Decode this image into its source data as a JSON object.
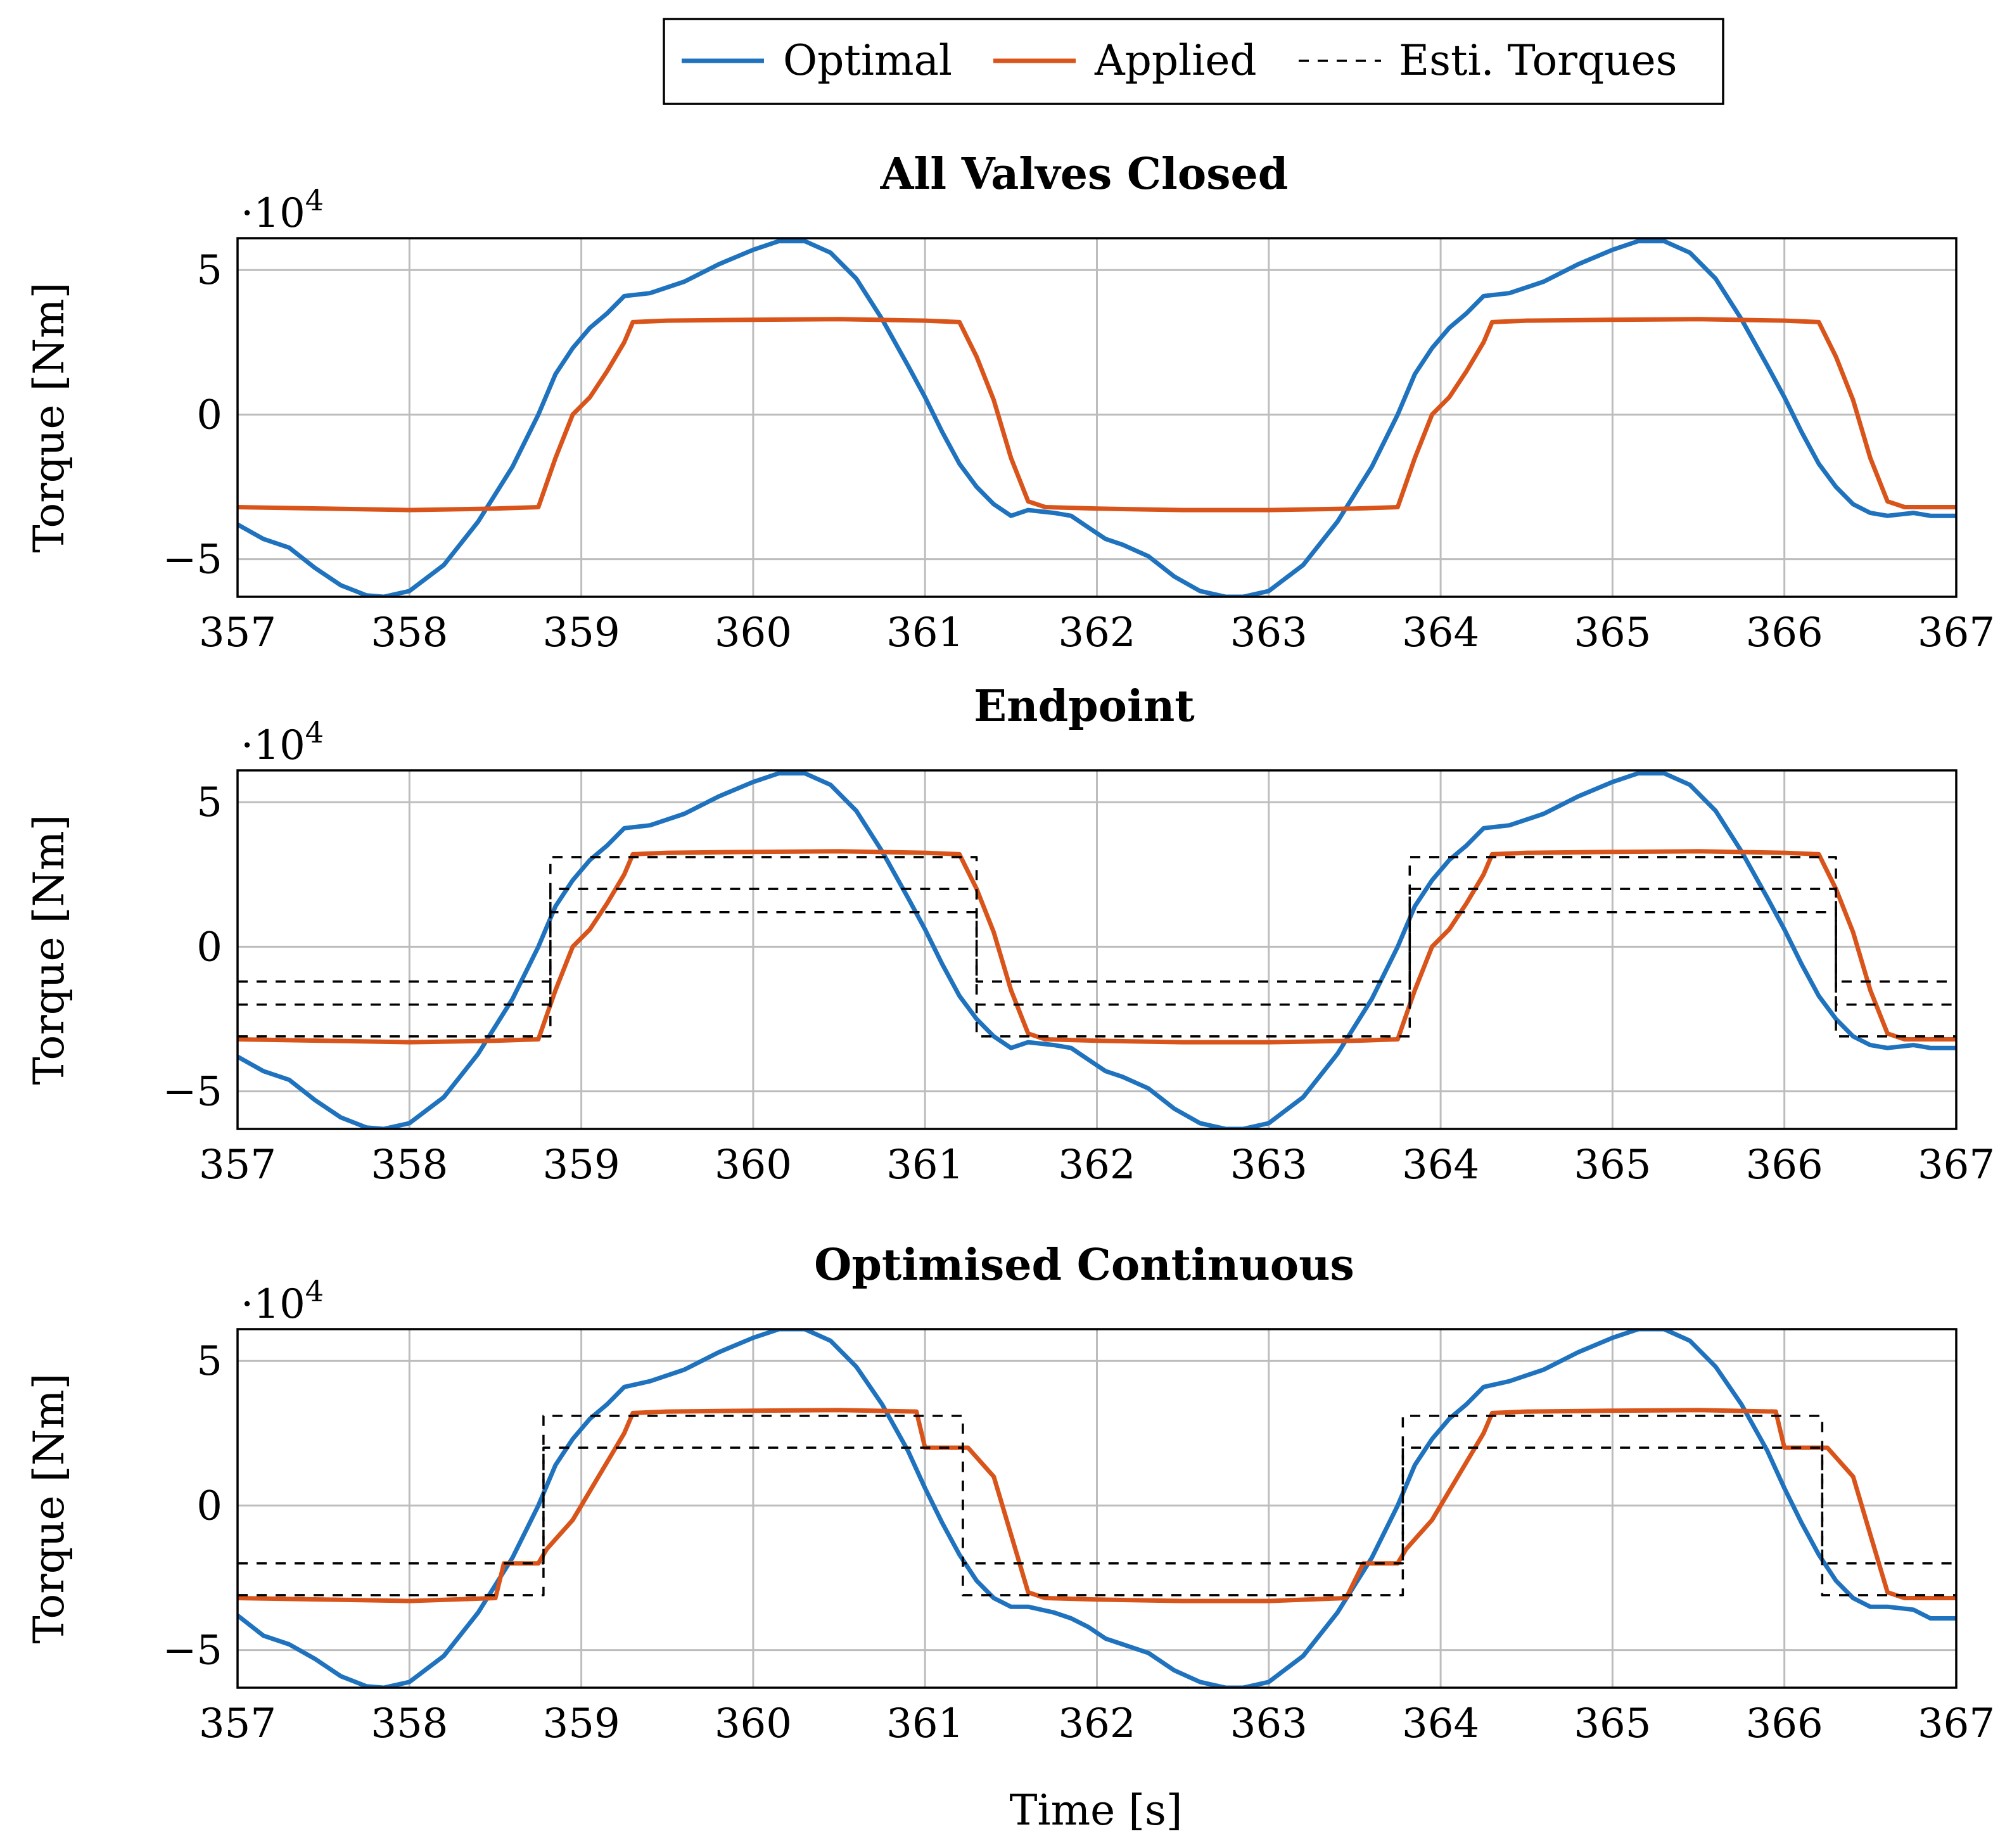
{
  "legend": {
    "items": [
      {
        "label": "Optimal",
        "color": "#1f72bd",
        "style": "solid"
      },
      {
        "label": "Applied",
        "color": "#d9541a",
        "style": "solid"
      },
      {
        "label": "Esti. Torques",
        "color": "#000000",
        "style": "dashed"
      }
    ]
  },
  "xlabel": "Time [s]",
  "chart_data": [
    {
      "type": "line",
      "title": "All Valves Closed",
      "ylabel": "Torque [Nm]",
      "y_multiplier_prefix": "·10",
      "y_multiplier_exp": "4",
      "xlim": [
        357,
        367
      ],
      "ylim": [
        -6.3,
        6.1
      ],
      "xticks": [
        "357",
        "358",
        "359",
        "360",
        "361",
        "362",
        "363",
        "364",
        "365",
        "366",
        "367"
      ],
      "yticks": [
        {
          "value": 5,
          "label": "5"
        },
        {
          "value": 0,
          "label": "0"
        },
        {
          "value": -5,
          "label": "−5"
        }
      ],
      "series": [
        {
          "name": "Optimal",
          "color": "#1f72bd",
          "x": [
            357.0,
            357.15,
            357.3,
            357.45,
            357.6,
            357.75,
            357.85,
            358.0,
            358.2,
            358.4,
            358.6,
            358.75,
            358.85,
            358.95,
            359.05,
            359.15,
            359.25,
            359.4,
            359.6,
            359.8,
            360.0,
            360.15,
            360.3,
            360.45,
            360.6,
            360.75,
            360.9,
            361.0,
            361.1,
            361.2,
            361.3,
            361.4,
            361.5,
            361.6,
            361.75,
            361.85,
            361.95,
            362.05,
            362.15,
            362.3,
            362.45,
            362.6,
            362.75,
            362.85,
            363.0,
            363.2,
            363.4,
            363.6,
            363.75,
            363.85,
            363.95,
            364.05,
            364.15,
            364.25,
            364.4,
            364.6,
            364.8,
            365.0,
            365.15,
            365.3,
            365.45,
            365.6,
            365.75,
            365.9,
            366.0,
            366.1,
            366.2,
            366.3,
            366.4,
            366.5,
            366.6,
            366.75,
            366.85,
            367.0
          ],
          "y": [
            -3.8,
            -4.3,
            -4.6,
            -5.3,
            -5.9,
            -6.25,
            -6.3,
            -6.1,
            -5.2,
            -3.7,
            -1.8,
            0.0,
            1.4,
            2.3,
            3.0,
            3.5,
            4.1,
            4.2,
            4.6,
            5.2,
            5.7,
            6.0,
            6.0,
            5.6,
            4.7,
            3.3,
            1.7,
            0.6,
            -0.6,
            -1.7,
            -2.5,
            -3.1,
            -3.5,
            -3.3,
            -3.4,
            -3.5,
            -3.9,
            -4.3,
            -4.5,
            -4.9,
            -5.6,
            -6.1,
            -6.3,
            -6.3,
            -6.1,
            -5.2,
            -3.7,
            -1.8,
            0.0,
            1.4,
            2.3,
            3.0,
            3.5,
            4.1,
            4.2,
            4.6,
            5.2,
            5.7,
            6.0,
            6.0,
            5.6,
            4.7,
            3.3,
            1.7,
            0.6,
            -0.6,
            -1.7,
            -2.5,
            -3.1,
            -3.4,
            -3.5,
            -3.4,
            -3.5,
            -3.5
          ]
        },
        {
          "name": "Applied",
          "color": "#d9541a",
          "x": [
            357.0,
            357.5,
            358.0,
            358.5,
            358.75,
            358.85,
            358.95,
            359.05,
            359.15,
            359.25,
            359.3,
            359.5,
            360.0,
            360.5,
            361.0,
            361.2,
            361.3,
            361.4,
            361.5,
            361.6,
            361.7,
            362.0,
            362.5,
            363.0,
            363.5,
            363.75,
            363.85,
            363.95,
            364.05,
            364.15,
            364.25,
            364.3,
            364.5,
            365.0,
            365.5,
            366.0,
            366.2,
            366.3,
            366.4,
            366.5,
            366.6,
            366.7,
            367.0
          ],
          "y": [
            -3.2,
            -3.25,
            -3.3,
            -3.25,
            -3.2,
            -1.5,
            0.0,
            0.6,
            1.5,
            2.5,
            3.2,
            3.25,
            3.28,
            3.3,
            3.25,
            3.2,
            2.0,
            0.5,
            -1.5,
            -3.0,
            -3.2,
            -3.25,
            -3.3,
            -3.3,
            -3.25,
            -3.2,
            -1.5,
            0.0,
            0.6,
            1.5,
            2.5,
            3.2,
            3.25,
            3.28,
            3.3,
            3.25,
            3.2,
            2.0,
            0.5,
            -1.5,
            -3.0,
            -3.2,
            -3.2
          ]
        }
      ]
    },
    {
      "type": "line",
      "title": "Endpoint",
      "ylabel": "Torque [Nm]",
      "y_multiplier_prefix": "·10",
      "y_multiplier_exp": "4",
      "xlim": [
        357,
        367
      ],
      "ylim": [
        -6.3,
        6.1
      ],
      "xticks": [
        "357",
        "358",
        "359",
        "360",
        "361",
        "362",
        "363",
        "364",
        "365",
        "366",
        "367"
      ],
      "yticks": [
        {
          "value": 5,
          "label": "5"
        },
        {
          "value": 0,
          "label": "0"
        },
        {
          "value": -5,
          "label": "−5"
        }
      ],
      "series": [
        {
          "name": "Optimal",
          "color": "#1f72bd",
          "x": [
            357.0,
            357.15,
            357.3,
            357.45,
            357.6,
            357.75,
            357.85,
            358.0,
            358.2,
            358.4,
            358.6,
            358.75,
            358.85,
            358.95,
            359.05,
            359.15,
            359.25,
            359.4,
            359.6,
            359.8,
            360.0,
            360.15,
            360.3,
            360.45,
            360.6,
            360.75,
            360.9,
            361.0,
            361.1,
            361.2,
            361.3,
            361.4,
            361.5,
            361.6,
            361.75,
            361.85,
            361.95,
            362.05,
            362.15,
            362.3,
            362.45,
            362.6,
            362.75,
            362.85,
            363.0,
            363.2,
            363.4,
            363.6,
            363.75,
            363.85,
            363.95,
            364.05,
            364.15,
            364.25,
            364.4,
            364.6,
            364.8,
            365.0,
            365.15,
            365.3,
            365.45,
            365.6,
            365.75,
            365.9,
            366.0,
            366.1,
            366.2,
            366.3,
            366.4,
            366.5,
            366.6,
            366.75,
            366.85,
            367.0
          ],
          "y": [
            -3.8,
            -4.3,
            -4.6,
            -5.3,
            -5.9,
            -6.25,
            -6.3,
            -6.1,
            -5.2,
            -3.7,
            -1.8,
            0.0,
            1.4,
            2.3,
            3.0,
            3.5,
            4.1,
            4.2,
            4.6,
            5.2,
            5.7,
            6.0,
            6.0,
            5.6,
            4.7,
            3.3,
            1.7,
            0.6,
            -0.6,
            -1.7,
            -2.5,
            -3.1,
            -3.5,
            -3.3,
            -3.4,
            -3.5,
            -3.9,
            -4.3,
            -4.5,
            -4.9,
            -5.6,
            -6.1,
            -6.3,
            -6.3,
            -6.1,
            -5.2,
            -3.7,
            -1.8,
            0.0,
            1.4,
            2.3,
            3.0,
            3.5,
            4.1,
            4.2,
            4.6,
            5.2,
            5.7,
            6.0,
            6.0,
            5.6,
            4.7,
            3.3,
            1.7,
            0.6,
            -0.6,
            -1.7,
            -2.5,
            -3.1,
            -3.4,
            -3.5,
            -3.4,
            -3.5,
            -3.5
          ]
        },
        {
          "name": "Applied",
          "color": "#d9541a",
          "x": [
            357.0,
            357.5,
            358.0,
            358.5,
            358.75,
            358.85,
            358.95,
            359.05,
            359.15,
            359.25,
            359.3,
            359.5,
            360.0,
            360.5,
            361.0,
            361.2,
            361.3,
            361.4,
            361.5,
            361.6,
            361.7,
            362.0,
            362.5,
            363.0,
            363.5,
            363.75,
            363.85,
            363.95,
            364.05,
            364.15,
            364.25,
            364.3,
            364.5,
            365.0,
            365.5,
            366.0,
            366.2,
            366.3,
            366.4,
            366.5,
            366.6,
            366.7,
            367.0
          ],
          "y": [
            -3.2,
            -3.25,
            -3.3,
            -3.25,
            -3.2,
            -1.5,
            0.0,
            0.6,
            1.5,
            2.5,
            3.2,
            3.25,
            3.28,
            3.3,
            3.25,
            3.2,
            2.0,
            0.5,
            -1.5,
            -3.0,
            -3.2,
            -3.25,
            -3.3,
            -3.3,
            -3.25,
            -3.2,
            -1.5,
            0.0,
            0.6,
            1.5,
            2.5,
            3.2,
            3.25,
            3.28,
            3.3,
            3.25,
            3.2,
            2.0,
            0.5,
            -1.5,
            -3.0,
            -3.2,
            -3.2
          ]
        },
        {
          "name": "Esti. Torques (level 1)",
          "color": "#000000",
          "x": [
            357.0,
            358.82,
            358.82,
            361.3,
            361.3,
            363.82,
            363.82,
            366.3,
            366.3,
            367.0
          ],
          "y": [
            -3.1,
            -3.1,
            3.1,
            3.1,
            -3.1,
            -3.1,
            3.1,
            3.1,
            -3.1,
            -3.1
          ]
        },
        {
          "name": "Esti. Torques (level 2)",
          "color": "#000000",
          "x": [
            357.0,
            358.82,
            358.82,
            361.3,
            361.3,
            363.82,
            363.82,
            366.3,
            366.3,
            367.0
          ],
          "y": [
            -2.0,
            -2.0,
            2.0,
            2.0,
            -2.0,
            -2.0,
            2.0,
            2.0,
            -2.0,
            -2.0
          ]
        },
        {
          "name": "Esti. Torques (level 3)",
          "color": "#000000",
          "x": [
            357.0,
            358.82,
            358.82,
            361.3,
            361.3,
            363.82,
            363.82,
            366.3,
            366.3,
            367.0
          ],
          "y": [
            -1.2,
            -1.2,
            1.2,
            1.2,
            -1.2,
            -1.2,
            1.2,
            1.2,
            -1.2,
            -1.2
          ]
        }
      ]
    },
    {
      "type": "line",
      "title": "Optimised Continuous",
      "ylabel": "Torque [Nm]",
      "y_multiplier_prefix": "·10",
      "y_multiplier_exp": "4",
      "xlim": [
        357,
        367
      ],
      "ylim": [
        -6.3,
        6.1
      ],
      "xticks": [
        "357",
        "358",
        "359",
        "360",
        "361",
        "362",
        "363",
        "364",
        "365",
        "366",
        "367"
      ],
      "yticks": [
        {
          "value": 5,
          "label": "5"
        },
        {
          "value": 0,
          "label": "0"
        },
        {
          "value": -5,
          "label": "−5"
        }
      ],
      "series": [
        {
          "name": "Optimal",
          "color": "#1f72bd",
          "x": [
            357.0,
            357.15,
            357.3,
            357.45,
            357.6,
            357.75,
            357.85,
            358.0,
            358.2,
            358.4,
            358.6,
            358.75,
            358.85,
            358.95,
            359.05,
            359.15,
            359.25,
            359.4,
            359.6,
            359.8,
            360.0,
            360.15,
            360.3,
            360.45,
            360.6,
            360.75,
            360.9,
            361.0,
            361.1,
            361.2,
            361.3,
            361.4,
            361.5,
            361.6,
            361.75,
            361.85,
            361.95,
            362.05,
            362.15,
            362.3,
            362.45,
            362.6,
            362.75,
            362.85,
            363.0,
            363.2,
            363.4,
            363.6,
            363.75,
            363.85,
            363.95,
            364.05,
            364.15,
            364.25,
            364.4,
            364.6,
            364.8,
            365.0,
            365.15,
            365.3,
            365.45,
            365.6,
            365.75,
            365.9,
            366.0,
            366.1,
            366.2,
            366.3,
            366.4,
            366.5,
            366.6,
            366.75,
            366.85,
            367.0
          ],
          "y": [
            -3.8,
            -4.5,
            -4.8,
            -5.3,
            -5.9,
            -6.25,
            -6.3,
            -6.1,
            -5.2,
            -3.7,
            -1.8,
            0.0,
            1.4,
            2.3,
            3.0,
            3.5,
            4.1,
            4.3,
            4.7,
            5.3,
            5.8,
            6.1,
            6.1,
            5.7,
            4.8,
            3.5,
            1.9,
            0.6,
            -0.6,
            -1.7,
            -2.6,
            -3.2,
            -3.5,
            -3.5,
            -3.7,
            -3.9,
            -4.2,
            -4.6,
            -4.8,
            -5.1,
            -5.7,
            -6.1,
            -6.3,
            -6.3,
            -6.1,
            -5.2,
            -3.7,
            -1.8,
            0.0,
            1.4,
            2.3,
            3.0,
            3.5,
            4.1,
            4.3,
            4.7,
            5.3,
            5.8,
            6.1,
            6.1,
            5.7,
            4.8,
            3.5,
            1.9,
            0.6,
            -0.6,
            -1.7,
            -2.6,
            -3.2,
            -3.5,
            -3.5,
            -3.6,
            -3.9,
            -3.9
          ]
        },
        {
          "name": "Applied",
          "color": "#d9541a",
          "x": [
            357.0,
            357.5,
            358.0,
            358.5,
            358.55,
            358.75,
            358.8,
            358.95,
            359.05,
            359.15,
            359.25,
            359.3,
            359.5,
            360.0,
            360.5,
            360.95,
            361.0,
            361.25,
            361.4,
            361.5,
            361.6,
            361.7,
            362.0,
            362.5,
            363.0,
            363.45,
            363.55,
            363.75,
            363.8,
            363.95,
            364.05,
            364.15,
            364.25,
            364.3,
            364.5,
            365.0,
            365.5,
            365.95,
            366.0,
            366.25,
            366.4,
            366.5,
            366.6,
            366.7,
            367.0
          ],
          "y": [
            -3.2,
            -3.25,
            -3.3,
            -3.2,
            -2.0,
            -2.0,
            -1.5,
            -0.5,
            0.5,
            1.5,
            2.5,
            3.2,
            3.25,
            3.28,
            3.3,
            3.25,
            2.0,
            2.0,
            1.0,
            -1.0,
            -3.0,
            -3.2,
            -3.25,
            -3.3,
            -3.3,
            -3.2,
            -2.0,
            -2.0,
            -1.5,
            -0.5,
            0.5,
            1.5,
            2.5,
            3.2,
            3.25,
            3.28,
            3.3,
            3.25,
            2.0,
            2.0,
            1.0,
            -1.0,
            -3.0,
            -3.2,
            -3.2
          ]
        },
        {
          "name": "Esti. Torques (level 1)",
          "color": "#000000",
          "x": [
            357.0,
            358.78,
            358.78,
            361.22,
            361.22,
            363.78,
            363.78,
            366.22,
            366.22,
            367.0
          ],
          "y": [
            -3.1,
            -3.1,
            3.1,
            3.1,
            -3.1,
            -3.1,
            3.1,
            3.1,
            -3.1,
            -3.1
          ]
        },
        {
          "name": "Esti. Torques (level 2)",
          "color": "#000000",
          "x": [
            357.0,
            358.78,
            358.78,
            361.22,
            361.22,
            363.78,
            363.78,
            366.22,
            366.22,
            367.0
          ],
          "y": [
            -2.0,
            -2.0,
            2.0,
            2.0,
            -2.0,
            -2.0,
            2.0,
            2.0,
            -2.0,
            -2.0
          ]
        }
      ]
    }
  ]
}
